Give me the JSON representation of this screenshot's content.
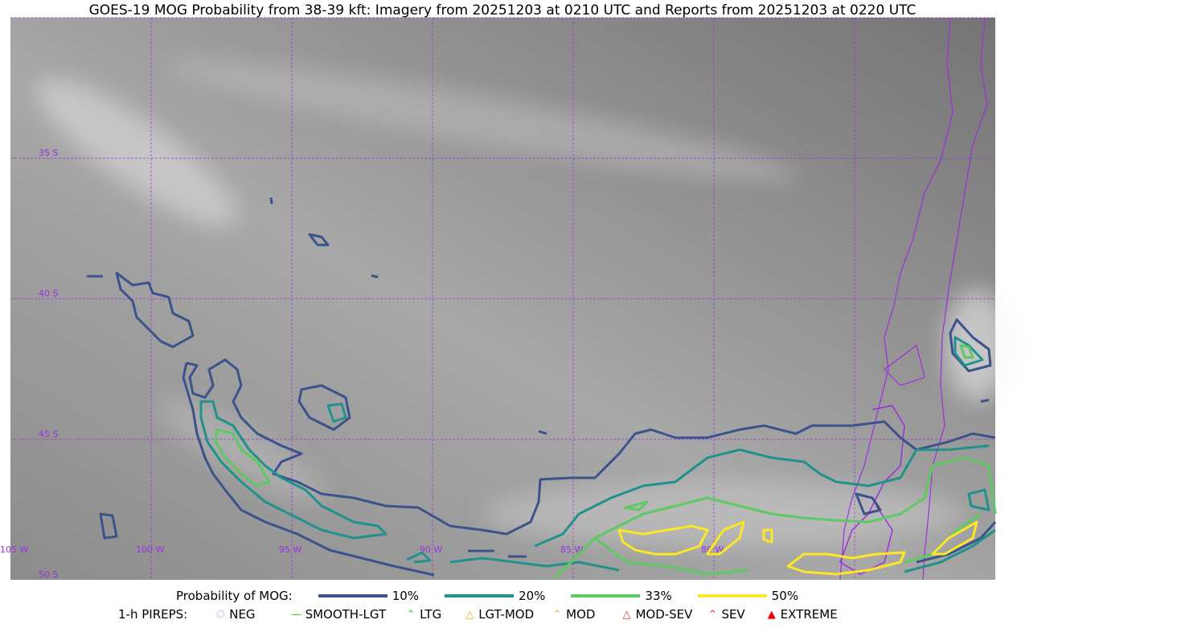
{
  "title": "GOES-19 MOG Probability from 38-39 kft: Imagery from 20251203 at 0210 UTC and Reports from 20251203 at 0220 UTC",
  "map": {
    "lon_labels": [
      "105 W",
      "100 W",
      "95 W",
      "90 W",
      "85 W",
      "80 W"
    ],
    "lat_labels": [
      "35 S",
      "40 S",
      "45 S",
      "50 S"
    ],
    "grid_color": "#9b30d9",
    "coast_color": "#9b30d9"
  },
  "legend": {
    "prob_label": "Probability of MOG:",
    "levels": [
      {
        "label": "10%",
        "color": "#3b528b"
      },
      {
        "label": "20%",
        "color": "#21918c"
      },
      {
        "label": "33%",
        "color": "#5ec962"
      },
      {
        "label": "50%",
        "color": "#fde725"
      }
    ],
    "pirep_label": "1-h PIREPS:",
    "pireps": [
      {
        "label": "NEG",
        "icon": "neg-icon",
        "color": "#c0c0f0"
      },
      {
        "label": "SMOOTH-LGT",
        "icon": "line-icon",
        "color": "#22dd22"
      },
      {
        "label": "LTG",
        "icon": "caret-icon",
        "color": "#00dd00"
      },
      {
        "label": "LGT-MOD",
        "icon": "caret-bar-icon",
        "color": "#f5a623"
      },
      {
        "label": "MOD",
        "icon": "caret-icon",
        "color": "#f5a623"
      },
      {
        "label": "MOD-SEV",
        "icon": "double-caret-bar-icon",
        "color": "#ee2222"
      },
      {
        "label": "SEV",
        "icon": "double-caret-icon",
        "color": "#ee2222"
      },
      {
        "label": "EXTREME",
        "icon": "triangle-icon",
        "color": "#ee0000"
      }
    ]
  }
}
